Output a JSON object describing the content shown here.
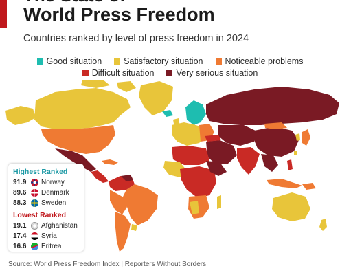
{
  "header": {
    "title_partial": "The State of",
    "title": "World Press Freedom",
    "subtitle": "Countries ranked by level of press freedom in 2024"
  },
  "colors": {
    "accent": "#c0181d",
    "good": "#1ebdb0",
    "satisfactory": "#e8c53a",
    "noticeable": "#ef7a33",
    "difficult": "#c92a25",
    "very_serious": "#7a1a24",
    "no_data": "#cfd3d6"
  },
  "legend": {
    "items": [
      {
        "label": "Good situation",
        "color": "#1ebdb0"
      },
      {
        "label": "Satisfactory situation",
        "color": "#e8c53a"
      },
      {
        "label": "Noticeable problems",
        "color": "#ef7a33"
      },
      {
        "label": "Difficult situation",
        "color": "#c92a25"
      },
      {
        "label": "Very serious situation",
        "color": "#7a1a24"
      }
    ]
  },
  "rankings": {
    "highest_title": "Highest Ranked",
    "lowest_title": "Lowest Ranked",
    "highest": [
      {
        "score": "91.9",
        "country": "Norway",
        "flag": "norway-flag-icon"
      },
      {
        "score": "89.6",
        "country": "Denmark",
        "flag": "denmark-flag-icon"
      },
      {
        "score": "88.3",
        "country": "Sweden",
        "flag": "sweden-flag-icon"
      }
    ],
    "lowest": [
      {
        "score": "19.1",
        "country": "Afghanistan",
        "flag": "afghanistan-flag-icon"
      },
      {
        "score": "17.4",
        "country": "Syria",
        "flag": "syria-flag-icon"
      },
      {
        "score": "16.6",
        "country": "Eritrea",
        "flag": "eritrea-flag-icon"
      }
    ]
  },
  "footer": {
    "source": "Source: World Press Freedom Index | Reporters Without Borders"
  }
}
